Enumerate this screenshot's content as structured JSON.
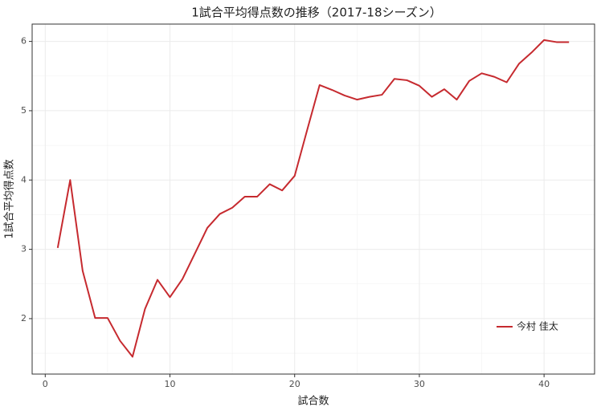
{
  "chart_data": {
    "type": "line",
    "title": "1試合平均得点数の推移（2017-18シーズン）",
    "x_label": "試合数",
    "y_label": "1試合平均得点数",
    "x": [
      1,
      2,
      3,
      4,
      5,
      6,
      7,
      8,
      9,
      10,
      11,
      12,
      13,
      14,
      15,
      16,
      17,
      18,
      19,
      20,
      21,
      22,
      23,
      24,
      25,
      26,
      27,
      28,
      29,
      30,
      31,
      32,
      33,
      34,
      35,
      36,
      37,
      38,
      39,
      40,
      41,
      42
    ],
    "series": [
      {
        "name": "今村 佳太",
        "color": "#c62a2f",
        "values": [
          3.02,
          4.0,
          2.69,
          2.01,
          2.01,
          1.68,
          1.45,
          2.14,
          2.56,
          2.31,
          2.57,
          2.94,
          3.31,
          3.51,
          3.6,
          3.76,
          3.76,
          3.94,
          3.85,
          4.06,
          4.72,
          5.37,
          5.3,
          5.22,
          5.16,
          5.2,
          5.23,
          5.46,
          5.44,
          5.36,
          5.2,
          5.31,
          5.16,
          5.43,
          5.54,
          5.49,
          5.41,
          5.68,
          5.84,
          6.02,
          5.99,
          5.99
        ]
      }
    ],
    "xlim": [
      -1.05,
      44.05
    ],
    "ylim": [
      1.2,
      6.25
    ],
    "xticks": [
      0,
      10,
      20,
      30,
      40
    ],
    "yticks": [
      2,
      3,
      4,
      5,
      6
    ],
    "xticks_minor": [
      5,
      15,
      25,
      35
    ],
    "yticks_minor": [
      1.5,
      2.5,
      3.5,
      4.5,
      5.5
    ],
    "grid": true,
    "legend_position": "bottom-right"
  }
}
